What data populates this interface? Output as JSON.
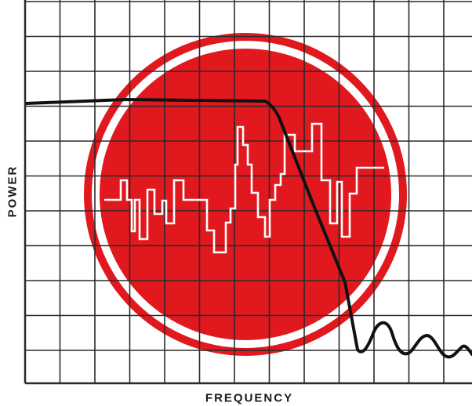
{
  "labels": {
    "y_axis": "POWER",
    "x_axis": "FREQUENCY"
  },
  "colors": {
    "background": "#ffffff",
    "grid": "#2a2a2a",
    "emblem_red": "#e1191f",
    "signal_white": "#ffffff",
    "response_curve": "#111111"
  },
  "graphics": {
    "emblem": "red-disc-with-white-ring",
    "signal_trace": "white-stepped-noise-signal",
    "response_curve": "black-lowpass-filter-curve"
  }
}
